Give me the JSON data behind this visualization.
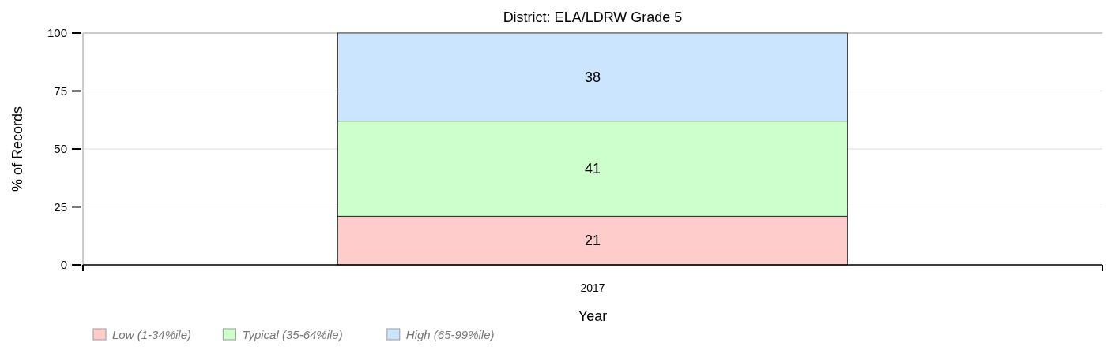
{
  "chart_data": {
    "type": "bar",
    "title": "District: ELA/LDRW Grade 5",
    "xlabel": "Year",
    "ylabel": "% of Records",
    "categories": [
      "2017"
    ],
    "stacked": true,
    "data_labels": true,
    "series": [
      {
        "name": "Low (1-34%ile)",
        "color": "#ffcccc",
        "values": [
          21
        ]
      },
      {
        "name": "Typical (35-64%ile)",
        "color": "#ccffcc",
        "values": [
          41
        ]
      },
      {
        "name": "High (65-99%ile)",
        "color": "#cce5ff",
        "values": [
          38
        ]
      }
    ],
    "ylim": [
      0,
      100
    ],
    "yticks": [
      0,
      25,
      50,
      75,
      100
    ],
    "grid": "y",
    "legend": "bottom left"
  }
}
